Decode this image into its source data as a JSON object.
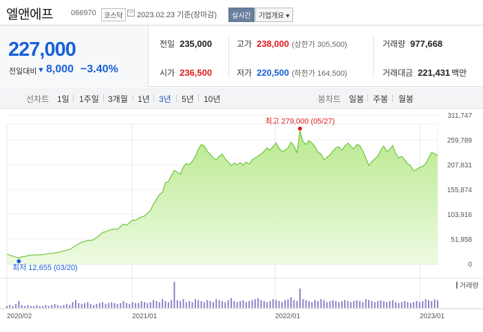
{
  "header": {
    "stock_name": "엘앤에프",
    "stock_code": "066970",
    "market": "코스닥",
    "date_text": "2023.02.23 기준(장마감)",
    "realtime_label": "실시간",
    "company_label": "기업개요 ▾"
  },
  "price": {
    "current": "227,000",
    "change_label": "전일대비",
    "change_arrow": "▼",
    "change_amount": "8,000",
    "change_pct": "−3.40%",
    "accent_color": "#1960d8",
    "up_color": "#e01b1b"
  },
  "stats": {
    "prev_close": {
      "label": "전일",
      "value": "235,000"
    },
    "high": {
      "label": "고가",
      "value": "238,000",
      "sub": "(상한가 305,500)"
    },
    "volume": {
      "label": "거래량",
      "value": "977,668"
    },
    "open": {
      "label": "시가",
      "value": "236,500"
    },
    "low": {
      "label": "저가",
      "value": "220,500",
      "sub": "(하한가 164,500)"
    },
    "amount": {
      "label": "거래대금",
      "value": "221,431",
      "unit": "백만"
    }
  },
  "toolbar": {
    "line_label": "선차트",
    "periods": [
      "1일",
      "1주일",
      "3개월",
      "1년",
      "3년",
      "5년",
      "10년"
    ],
    "active_period": "3년",
    "candle_label": "봉차트",
    "candles": [
      "일봉",
      "주봉",
      "월봉"
    ]
  },
  "chart_data": {
    "type": "area",
    "y_ticks": [
      "311,747",
      "259,789",
      "207,831",
      "155,874",
      "103,916",
      "51,958",
      "0"
    ],
    "ylim": [
      0,
      311747
    ],
    "x_ticks": [
      "2020/02",
      "2021/01",
      "2022/01",
      "2023/01"
    ],
    "max_annotation": "최고 279,000 (05/27)",
    "min_annotation": "최저 12,655 (03/20)",
    "volume_legend": "거래량",
    "line_color": "#6cc43a",
    "fill_color": "#c9ef9f",
    "volume_color": "#8c7fc6",
    "series": [
      {
        "values": [
          20000,
          18500,
          16000,
          14000,
          12655,
          14500,
          15500,
          17000,
          18000,
          18500,
          19000,
          18800,
          19500,
          20500,
          22000,
          21500,
          23000,
          24000,
          25500,
          27000,
          28500,
          30000,
          34000,
          38000,
          42000,
          45000,
          47000,
          49000,
          48500,
          51000,
          55000,
          60000,
          66000,
          67000,
          70000,
          72000,
          73000,
          72500,
          78000,
          83000,
          81000,
          86000,
          92000,
          91000,
          95000,
          98000,
          100000,
          106000,
          112000,
          125000,
          135000,
          145000,
          150000,
          170000,
          172000,
          185000,
          196000,
          192000,
          188000,
          203000,
          210000,
          208000,
          215000,
          225000,
          240000,
          250000,
          247000,
          236000,
          229000,
          222000,
          218000,
          225000,
          230000,
          220000,
          213000,
          206000,
          211000,
          208000,
          212000,
          207000,
          213000,
          209000,
          218000,
          222000,
          226000,
          230000,
          236000,
          243000,
          238000,
          246000,
          253000,
          242000,
          235000,
          238000,
          243000,
          255000,
          247000,
          233000,
          279000,
          256000,
          250000,
          258000,
          253000,
          246000,
          234000,
          230000,
          218000,
          223000,
          228000,
          236000,
          243000,
          245000,
          238000,
          247000,
          253000,
          246000,
          241000,
          250000,
          248000,
          236000,
          222000,
          206000,
          214000,
          220000,
          226000,
          238000,
          247000,
          235000,
          240000,
          248000,
          231000,
          222000,
          225000,
          218000,
          210000,
          205000,
          195000,
          198000,
          202000,
          204000,
          210000,
          222000,
          233000,
          231000,
          227000
        ],
        "volumes": [
          2,
          3,
          2,
          4,
          7,
          3,
          2,
          3,
          2,
          2,
          3,
          2,
          2,
          3,
          2,
          3,
          4,
          3,
          2,
          3,
          4,
          3,
          6,
          8,
          5,
          4,
          5,
          6,
          4,
          3,
          4,
          5,
          6,
          4,
          5,
          6,
          5,
          4,
          5,
          7,
          5,
          4,
          6,
          5,
          5,
          7,
          6,
          5,
          6,
          8,
          7,
          6,
          9,
          7,
          6,
          8,
          27,
          8,
          7,
          9,
          6,
          7,
          6,
          9,
          8,
          7,
          6,
          8,
          7,
          6,
          9,
          8,
          7,
          6,
          8,
          10,
          7,
          6,
          7,
          8,
          6,
          7,
          8,
          9,
          10,
          8,
          7,
          6,
          7,
          9,
          8,
          7,
          6,
          8,
          9,
          11,
          8,
          7,
          20,
          9,
          8,
          7,
          6,
          8,
          7,
          9,
          8,
          6,
          7,
          8,
          7,
          6,
          7,
          8,
          7,
          6,
          7,
          8,
          7,
          6,
          9,
          8,
          7,
          6,
          7,
          8,
          7,
          6,
          7,
          8,
          6,
          5,
          6,
          7,
          6,
          5,
          6,
          7,
          6,
          7,
          9,
          8,
          7,
          9,
          8
        ]
      }
    ]
  }
}
